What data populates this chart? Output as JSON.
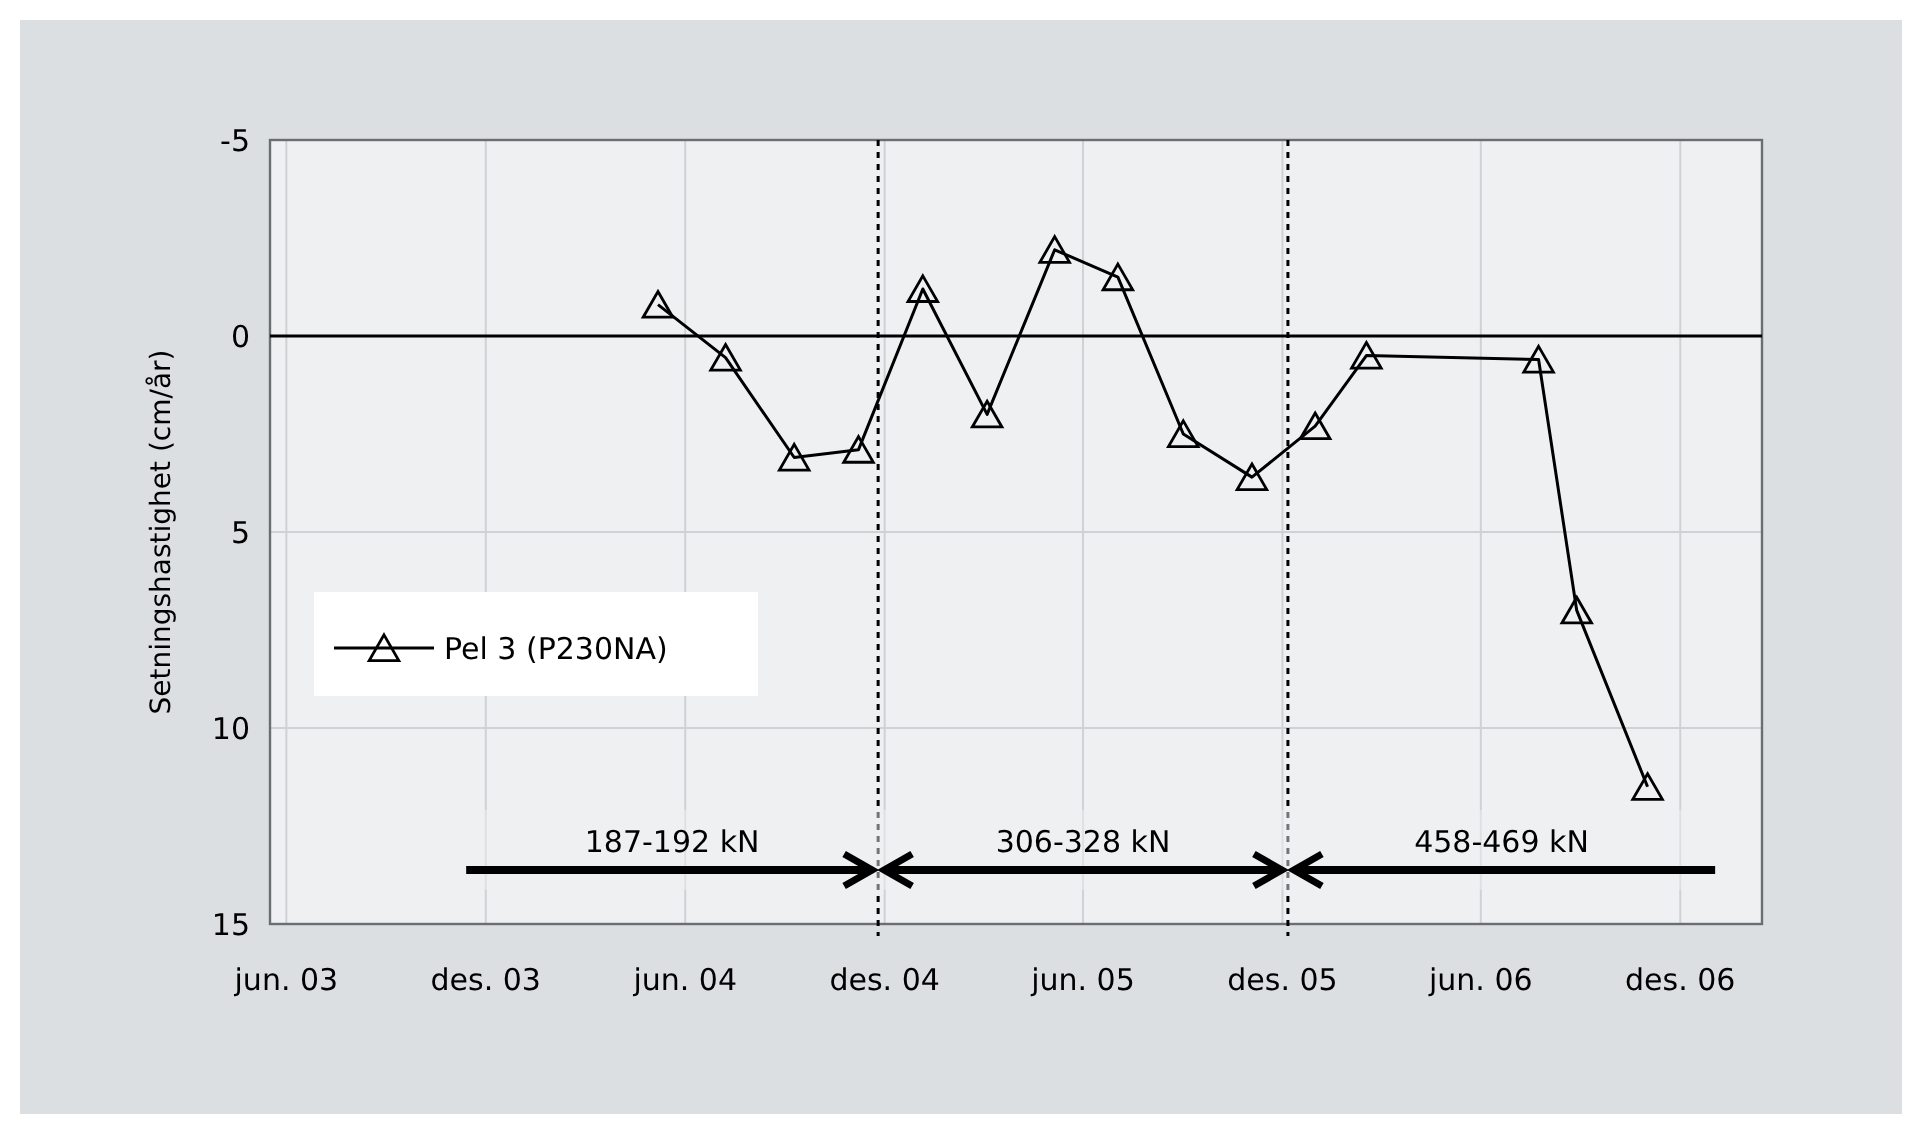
{
  "chart_data": {
    "type": "line",
    "ylabel": "Setningshastighet (cm/år)",
    "x": [
      "2004-05-07",
      "2004-07-08",
      "2004-09-09",
      "2004-11-07",
      "2005-01-05",
      "2005-03-05",
      "2005-05-06",
      "2005-07-03",
      "2005-09-01",
      "2005-11-03",
      "2005-12-31",
      "2006-02-16",
      "2006-07-24",
      "2006-08-28",
      "2006-11-01"
    ],
    "series": [
      {
        "name": "Pel 3 (P230NA)",
        "color": "#000000",
        "values": [
          -0.8,
          0.55,
          3.1,
          2.9,
          -1.2,
          2.0,
          -2.2,
          -1.5,
          2.5,
          3.6,
          2.3,
          0.5,
          0.6,
          7.0,
          11.5
        ]
      }
    ],
    "xlim": [
      "2003-05-17",
      "2007-02-14"
    ],
    "xticks": [
      {
        "value": "2003-06-01",
        "label": "jun. 03"
      },
      {
        "value": "2003-12-01",
        "label": "des. 03"
      },
      {
        "value": "2004-06-01",
        "label": "jun. 04"
      },
      {
        "value": "2004-12-01",
        "label": "des. 04"
      },
      {
        "value": "2005-06-01",
        "label": "jun. 05"
      },
      {
        "value": "2005-12-01",
        "label": "des. 05"
      },
      {
        "value": "2006-06-01",
        "label": "jun. 06"
      },
      {
        "value": "2006-12-01",
        "label": "des. 06"
      }
    ],
    "ylim": [
      15,
      -5
    ],
    "yticks": [
      -5,
      0,
      5,
      10,
      15
    ],
    "grid": true,
    "legend": "left",
    "marker": "triangle",
    "line_style": "solid",
    "ref_lines": [
      {
        "axis": "y",
        "value": 0,
        "line_style": "solid"
      },
      {
        "axis": "x",
        "value": "2004-11-25",
        "line_style": "dotted"
      },
      {
        "axis": "x",
        "value": "2005-12-06",
        "line_style": "dotted"
      }
    ],
    "bands": [
      {
        "axis": "x",
        "from": "2003-11-13",
        "to": "2004-11-25",
        "label": "187-192 kN"
      },
      {
        "axis": "x",
        "from": "2004-11-25",
        "to": "2005-12-06",
        "label": "306-328 kN"
      },
      {
        "axis": "x",
        "from": "2005-12-06",
        "to": "2007-01-02",
        "label": "458-469 kN"
      }
    ]
  }
}
